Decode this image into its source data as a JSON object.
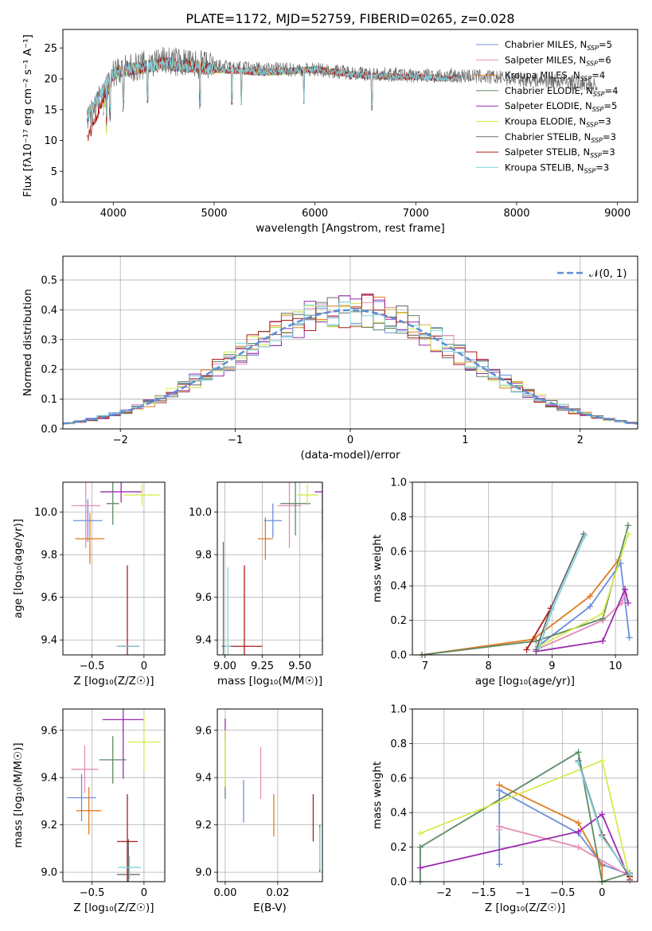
{
  "figure_title": "PLATE=1172, MJD=52759, FIBERID=0265, z=0.028",
  "colors": {
    "chabrier_miles": "#6b8fdc",
    "salpeter_miles": "#e58cb8",
    "kroupa_miles": "#e07b22",
    "chabrier_elodie": "#5d8a66",
    "salpeter_elodie": "#9b2aaf",
    "kroupa_elodie": "#d8ea4e",
    "chabrier_stelib": "#6a6a6a",
    "salpeter_stelib": "#b01b1b",
    "kroupa_stelib": "#7fd4df",
    "gaussian": "#5b8ed6"
  },
  "chart_data": [
    {
      "id": "spectrum",
      "type": "line",
      "xlabel": "wavelength [Angstrom, rest frame]",
      "ylabel": "Flux [fλ10⁻¹⁷ erg cm⁻² s⁻¹ A⁻¹]",
      "xlim": [
        3500,
        9200
      ],
      "ylim": [
        0,
        28
      ],
      "xticks": [
        4000,
        5000,
        6000,
        7000,
        8000,
        9000
      ],
      "yticks": [
        0,
        5,
        10,
        15,
        20,
        25
      ],
      "grid": false,
      "legend_position": "top-right",
      "series": [
        {
          "name": "Chabrier MILES, N_SSP=5",
          "label_main": "Chabrier MILES, N",
          "label_sub": "SSP",
          "label_tail": "=5",
          "color": "#6b8fdc",
          "x": [
            3740,
            4000,
            4500,
            5000,
            5500,
            6000,
            6500,
            7000,
            7420
          ],
          "y": [
            14,
            21,
            22.5,
            21.5,
            21,
            21.5,
            20.5,
            20.3,
            20
          ]
        },
        {
          "name": "Salpeter MILES, N_SSP=6",
          "label_main": "Salpeter MILES, N",
          "label_sub": "SSP",
          "label_tail": "=6",
          "color": "#e58cb8",
          "x": [
            3740,
            4000,
            4500,
            5000,
            5500,
            6000,
            6500,
            7000,
            7420
          ],
          "y": [
            14,
            21,
            22.5,
            21.5,
            21,
            21.5,
            20.5,
            20.3,
            20
          ]
        },
        {
          "name": "Kroupa MILES, N_SSP=4",
          "label_main": "Kroupa MILES, N",
          "label_sub": "SSP",
          "label_tail": "=4",
          "color": "#e07b22",
          "x": [
            3740,
            4000,
            4500,
            5000,
            5500,
            6000,
            6500,
            7000,
            7420
          ],
          "y": [
            14,
            21,
            22.5,
            21.5,
            21,
            21.5,
            20.5,
            20.3,
            20
          ]
        },
        {
          "name": "Chabrier ELODIE, N_SSP=4",
          "label_main": "Chabrier ELODIE, N",
          "label_sub": "SSP",
          "label_tail": "=4",
          "color": "#5d8a66",
          "x": [
            3900,
            4000,
            4500,
            5000,
            5500,
            6000,
            6500,
            6800
          ],
          "y": [
            15,
            21,
            22.5,
            21.5,
            21,
            21.5,
            20.5,
            20.3
          ]
        },
        {
          "name": "Salpeter ELODIE, N_SSP=5",
          "label_main": "Salpeter ELODIE, N",
          "label_sub": "SSP",
          "label_tail": "=5",
          "color": "#9b2aaf",
          "x": [
            3900,
            4000,
            4500,
            5000,
            5500,
            6000,
            6500,
            6800
          ],
          "y": [
            15,
            21,
            22.5,
            21.5,
            21,
            21.5,
            20.5,
            20.3
          ]
        },
        {
          "name": "Kroupa ELODIE, N_SSP=3",
          "label_main": "Kroupa ELODIE, N",
          "label_sub": "SSP",
          "label_tail": "=3",
          "color": "#d8ea4e",
          "x": [
            3900,
            4000,
            4500,
            5000,
            5500,
            6000,
            6500,
            6800
          ],
          "y": [
            15,
            21,
            22.5,
            21.5,
            21,
            21.5,
            20.5,
            20.3
          ]
        },
        {
          "name": "Chabrier STELIB, N_SSP=3",
          "label_main": "Chabrier STELIB, N",
          "label_sub": "SSP",
          "label_tail": "=3",
          "color": "#6a6a6a",
          "x": [
            3740,
            4000,
            4500,
            5000,
            5500,
            6000,
            6500,
            7000,
            7500,
            8000,
            8500,
            8800
          ],
          "y": [
            13,
            21,
            23,
            22,
            21.5,
            21.5,
            20.8,
            20.5,
            20.5,
            20,
            19.5,
            19
          ]
        },
        {
          "name": "Salpeter STELIB, N_SSP=3",
          "label_main": "Salpeter STELIB, N",
          "label_sub": "SSP",
          "label_tail": "=3",
          "color": "#b01b1b",
          "x": [
            3740,
            4000,
            4500,
            5000,
            5500,
            6000,
            6500,
            7000,
            7420
          ],
          "y": [
            10,
            21,
            22.5,
            21.5,
            21,
            21.5,
            20.5,
            20.3,
            20
          ]
        },
        {
          "name": "Kroupa STELIB, N_SSP=3",
          "label_main": "Kroupa STELIB, N",
          "label_sub": "SSP",
          "label_tail": "=3",
          "color": "#7fd4df",
          "x": [
            3740,
            4000,
            4500,
            5000,
            5500,
            6000,
            6500,
            7000,
            7420
          ],
          "y": [
            14,
            21,
            22.5,
            21.5,
            21,
            21.5,
            20.5,
            20.3,
            20
          ]
        }
      ]
    },
    {
      "id": "residuals",
      "type": "area",
      "xlabel": "(data-model)/error",
      "ylabel": "Normed distribution",
      "xlim": [
        -2.5,
        2.5
      ],
      "ylim": [
        0,
        0.58
      ],
      "xticks": [
        -2,
        -1,
        0,
        1,
        2
      ],
      "yticks": [
        0.0,
        0.1,
        0.2,
        0.3,
        0.4,
        0.5
      ],
      "grid": true,
      "legend_position": "top-right",
      "legend_label": "𝒩(0, 1)",
      "gaussian": {
        "mu": 0,
        "sigma": 1
      },
      "bin_width": 0.1
    },
    {
      "id": "age_vs_Z",
      "type": "scatter",
      "xlabel": "Z [log₁₀(Z/Z☉)]",
      "ylabel": "age  [log₁₀(age/yr)]",
      "xlim": [
        -0.78,
        0.2
      ],
      "ylim": [
        9.33,
        10.14
      ],
      "xticks": [
        -0.5,
        0.0
      ],
      "yticks": [
        9.4,
        9.6,
        9.8,
        10.0
      ],
      "grid": true,
      "points": [
        {
          "color": "#6b8fdc",
          "x": -0.54,
          "y": 9.96,
          "xerr": 0.14,
          "yerr": 0.1
        },
        {
          "color": "#e58cb8",
          "x": -0.56,
          "y": 10.03,
          "xerr": 0.14,
          "yerr": 0.2
        },
        {
          "color": "#e07b22",
          "x": -0.52,
          "y": 9.875,
          "xerr": 0.14,
          "yerr": 0.12
        },
        {
          "color": "#5d8a66",
          "x": -0.3,
          "y": 10.04,
          "xerr": 0.06,
          "yerr": 0.1
        },
        {
          "color": "#9b2aaf",
          "x": -0.22,
          "y": 10.095,
          "xerr": 0.2,
          "yerr": 0.05
        },
        {
          "color": "#d8ea4e",
          "x": -0.02,
          "y": 10.08,
          "xerr": 0.17,
          "yerr": 0.05
        },
        {
          "color": "#6a6a6a",
          "x": -0.15,
          "y": 9.37,
          "xerr": 0.1,
          "yerr": 0.0
        },
        {
          "color": "#b01b1b",
          "x": -0.16,
          "y": 9.37,
          "xerr": 0.1,
          "yerr": 0.38
        },
        {
          "color": "#7fd4df",
          "x": -0.15,
          "y": 9.37,
          "xerr": 0.11,
          "yerr": 0.0
        }
      ]
    },
    {
      "id": "age_vs_mass",
      "type": "scatter",
      "xlabel": "mass [log₁₀(M/M☉)]",
      "ylabel": "",
      "xlim": [
        8.95,
        9.65
      ],
      "ylim": [
        9.33,
        10.14
      ],
      "xticks": [
        9.0,
        9.25,
        9.5
      ],
      "xtick_labels": [
        "9.00",
        "9.25",
        "9.50"
      ],
      "yticks": [
        9.4,
        9.6,
        9.8,
        10.0
      ],
      "grid": true,
      "points": [
        {
          "color": "#6b8fdc",
          "x": 9.32,
          "y": 9.96,
          "xerr": 0.06,
          "yerr": 0.08
        },
        {
          "color": "#e58cb8",
          "x": 9.43,
          "y": 10.03,
          "xerr": 0.08,
          "yerr": 0.2
        },
        {
          "color": "#e07b22",
          "x": 9.27,
          "y": 9.875,
          "xerr": 0.05,
          "yerr": 0.1
        },
        {
          "color": "#5d8a66",
          "x": 9.47,
          "y": 10.04,
          "xerr": 0.1,
          "yerr": 0.15
        },
        {
          "color": "#9b2aaf",
          "x": 9.65,
          "y": 10.095,
          "xerr": 0.05,
          "yerr": 0.23
        },
        {
          "color": "#d8ea4e",
          "x": 9.55,
          "y": 10.08,
          "xerr": 0.07,
          "yerr": 0.05
        },
        {
          "color": "#6a6a6a",
          "x": 8.99,
          "y": 9.37,
          "xerr": 0.01,
          "yerr": 0.49
        },
        {
          "color": "#b01b1b",
          "x": 9.13,
          "y": 9.37,
          "xerr": 0.12,
          "yerr": 0.38
        },
        {
          "color": "#7fd4df",
          "x": 9.02,
          "y": 9.37,
          "xerr": 0.02,
          "yerr": 0.37
        }
      ]
    },
    {
      "id": "weight_vs_age",
      "type": "line",
      "xlabel": "age  [log₁₀(age/yr)]",
      "ylabel": "mass weight",
      "xlim": [
        6.8,
        10.35
      ],
      "ylim": [
        0,
        1
      ],
      "xticks": [
        7,
        8,
        9,
        10
      ],
      "yticks": [
        0.0,
        0.2,
        0.4,
        0.6,
        0.8,
        1.0
      ],
      "grid": true,
      "series": [
        {
          "color": "#6b8fdc",
          "x": [
            8.78,
            9.6,
            10.08,
            10.22
          ],
          "y": [
            0.05,
            0.28,
            0.53,
            0.1
          ]
        },
        {
          "color": "#e58cb8",
          "x": [
            8.75,
            9.8,
            10.1,
            10.15
          ],
          "y": [
            0.03,
            0.2,
            0.3,
            0.35
          ]
        },
        {
          "color": "#e07b22",
          "x": [
            6.95,
            8.7,
            9.6,
            10.05
          ],
          "y": [
            0.0,
            0.09,
            0.34,
            0.55
          ]
        },
        {
          "color": "#5d8a66",
          "x": [
            6.95,
            8.75,
            9.8,
            10.2
          ],
          "y": [
            0.0,
            0.08,
            0.21,
            0.75
          ]
        },
        {
          "color": "#9b2aaf",
          "x": [
            8.75,
            9.8,
            10.15,
            10.2
          ],
          "y": [
            0.02,
            0.08,
            0.38,
            0.3
          ]
        },
        {
          "color": "#d8ea4e",
          "x": [
            8.8,
            9.8,
            10.2
          ],
          "y": [
            0.05,
            0.24,
            0.7
          ]
        },
        {
          "color": "#6a6a6a",
          "x": [
            8.75,
            8.98,
            9.5
          ],
          "y": [
            0.03,
            0.27,
            0.7
          ]
        },
        {
          "color": "#b01b1b",
          "x": [
            8.6,
            8.98
          ],
          "y": [
            0.03,
            0.27
          ]
        },
        {
          "color": "#7fd4df",
          "x": [
            8.8,
            9.0,
            9.52
          ],
          "y": [
            0.04,
            0.26,
            0.69
          ]
        }
      ]
    },
    {
      "id": "mass_vs_Z",
      "type": "scatter",
      "xlabel": "Z [log₁₀(Z/Z☉)]",
      "ylabel": "mass [log₁₀(M/M☉)]",
      "xlim": [
        -0.78,
        0.2
      ],
      "ylim": [
        8.96,
        9.69
      ],
      "xticks": [
        -0.5,
        0.0
      ],
      "yticks": [
        9.0,
        9.2,
        9.4,
        9.6
      ],
      "grid": true,
      "points": [
        {
          "color": "#6b8fdc",
          "x": -0.6,
          "y": 9.315,
          "xerr": 0.14,
          "yerr": 0.1
        },
        {
          "color": "#e58cb8",
          "x": -0.57,
          "y": 9.435,
          "xerr": 0.13,
          "yerr": 0.1
        },
        {
          "color": "#e07b22",
          "x": -0.53,
          "y": 9.26,
          "xerr": 0.12,
          "yerr": 0.1
        },
        {
          "color": "#5d8a66",
          "x": -0.3,
          "y": 9.475,
          "xerr": 0.13,
          "yerr": 0.1
        },
        {
          "color": "#9b2aaf",
          "x": -0.2,
          "y": 9.645,
          "xerr": 0.2,
          "yerr": 0.25
        },
        {
          "color": "#d8ea4e",
          "x": 0.0,
          "y": 9.55,
          "xerr": 0.16,
          "yerr": 0.12
        },
        {
          "color": "#6a6a6a",
          "x": -0.15,
          "y": 8.99,
          "xerr": 0.11,
          "yerr": 0.15
        },
        {
          "color": "#b01b1b",
          "x": -0.16,
          "y": 9.13,
          "xerr": 0.1,
          "yerr": 0.2
        },
        {
          "color": "#7fd4df",
          "x": -0.14,
          "y": 9.02,
          "xerr": 0.11,
          "yerr": 0.05
        }
      ]
    },
    {
      "id": "mass_vs_ebv",
      "type": "scatter",
      "xlabel": "E(B-V)",
      "ylabel": "",
      "xlim": [
        -0.003,
        0.037
      ],
      "ylim": [
        8.96,
        9.69
      ],
      "xticks": [
        0.0,
        0.02
      ],
      "xtick_labels": [
        "0.00",
        "0.02"
      ],
      "yticks": [
        9.0,
        9.2,
        9.4,
        9.6
      ],
      "grid": true,
      "points": [
        {
          "color": "#6b8fdc",
          "x": 0.007,
          "y": 9.3,
          "xerr": 0,
          "yerr": 0.09
        },
        {
          "color": "#e58cb8",
          "x": 0.0135,
          "y": 9.42,
          "xerr": 0,
          "yerr": 0.11
        },
        {
          "color": "#e07b22",
          "x": 0.0185,
          "y": 9.24,
          "xerr": 0,
          "yerr": 0.09
        },
        {
          "color": "#5d8a66",
          "x": 0.0,
          "y": 9.45,
          "xerr": 0,
          "yerr": 0.14
        },
        {
          "color": "#9b2aaf",
          "x": 0.0,
          "y": 9.6,
          "xerr": 0,
          "yerr": 0.05
        },
        {
          "color": "#d8ea4e",
          "x": 0.0,
          "y": 9.48,
          "xerr": 0,
          "yerr": 0.12
        },
        {
          "color": "#6a6a6a",
          "x": 0.036,
          "y": 9.1,
          "xerr": 0,
          "yerr": 0.1
        },
        {
          "color": "#b01b1b",
          "x": 0.0335,
          "y": 9.23,
          "xerr": 0,
          "yerr": 0.1
        },
        {
          "color": "#7fd4df",
          "x": 0.036,
          "y": 9.1,
          "xerr": 0,
          "yerr": 0.09
        }
      ]
    },
    {
      "id": "weight_vs_Z",
      "type": "line",
      "xlabel": "Z [log₁₀(Z/Z☉)]",
      "ylabel": "mass weight",
      "xlim": [
        -2.4,
        0.45
      ],
      "ylim": [
        0,
        1
      ],
      "xticks": [
        -2.0,
        -1.5,
        -1.0,
        -0.5,
        0.0
      ],
      "yticks": [
        0.0,
        0.2,
        0.4,
        0.6,
        0.8,
        1.0
      ],
      "grid": true,
      "series": [
        {
          "color": "#6b8fdc",
          "x": [
            -1.3,
            -1.3,
            -0.3,
            0.0,
            0.35
          ],
          "y": [
            0.1,
            0.53,
            0.28,
            0.1,
            0.04
          ]
        },
        {
          "color": "#e58cb8",
          "x": [
            -1.3,
            -1.3,
            -0.3,
            0.35
          ],
          "y": [
            0.3,
            0.32,
            0.2,
            0.03
          ]
        },
        {
          "color": "#e07b22",
          "x": [
            -1.3,
            -0.3,
            0.0,
            0.0
          ],
          "y": [
            0.56,
            0.34,
            0.09,
            0.0
          ]
        },
        {
          "color": "#5d8a66",
          "x": [
            -2.3,
            -2.3,
            -0.3,
            0.0,
            0.35
          ],
          "y": [
            0.0,
            0.2,
            0.75,
            0.0,
            0.05
          ]
        },
        {
          "color": "#9b2aaf",
          "x": [
            -2.3,
            -0.3,
            0.0,
            0.35
          ],
          "y": [
            0.08,
            0.29,
            0.39,
            0.01
          ]
        },
        {
          "color": "#d8ea4e",
          "x": [
            -2.3,
            0.0,
            0.35
          ],
          "y": [
            0.28,
            0.7,
            0.02
          ]
        },
        {
          "color": "#6a6a6a",
          "x": [
            -0.3,
            0.0,
            0.35
          ],
          "y": [
            0.7,
            0.27,
            0.03
          ]
        },
        {
          "color": "#b01b1b",
          "x": [
            0.0,
            0.35
          ],
          "y": [
            0.27,
            0.03
          ]
        },
        {
          "color": "#7fd4df",
          "x": [
            -0.3,
            0.0,
            0.35
          ],
          "y": [
            0.69,
            0.26,
            0.04
          ]
        }
      ]
    }
  ]
}
